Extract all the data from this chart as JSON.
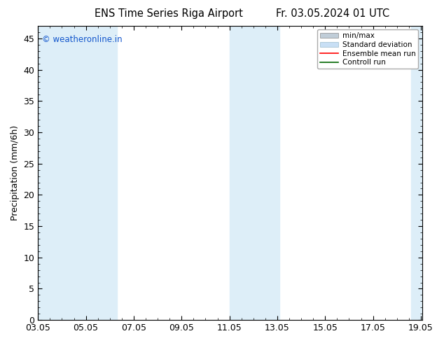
{
  "title_left": "ENS Time Series Riga Airport",
  "title_right": "Fr. 03.05.2024 01 UTC",
  "ylabel": "Precipitation (mm/6h)",
  "ylim": [
    0,
    47
  ],
  "yticks": [
    0,
    5,
    10,
    15,
    20,
    25,
    30,
    35,
    40,
    45
  ],
  "xtick_labels": [
    "03.05",
    "05.05",
    "07.05",
    "09.05",
    "11.05",
    "13.05",
    "15.05",
    "17.05",
    "19.05"
  ],
  "xtick_positions": [
    3.0,
    5.0,
    7.0,
    9.0,
    11.0,
    13.0,
    15.0,
    17.0,
    19.0
  ],
  "x_start": 3.0,
  "x_end": 19.05,
  "background_color": "#ffffff",
  "plot_bg_color": "#ffffff",
  "watermark": "© weatheronline.in",
  "watermark_color": "#1155cc",
  "ensemble_color": "#ff0000",
  "control_color": "#006600",
  "minmax_fill": "#c8d8e8",
  "std_fill": "#ddeef8",
  "band_regions": [
    [
      3.0,
      4.2
    ],
    [
      4.2,
      6.3
    ],
    [
      11.0,
      11.8
    ],
    [
      11.8,
      13.1
    ],
    [
      18.6,
      19.05
    ]
  ]
}
